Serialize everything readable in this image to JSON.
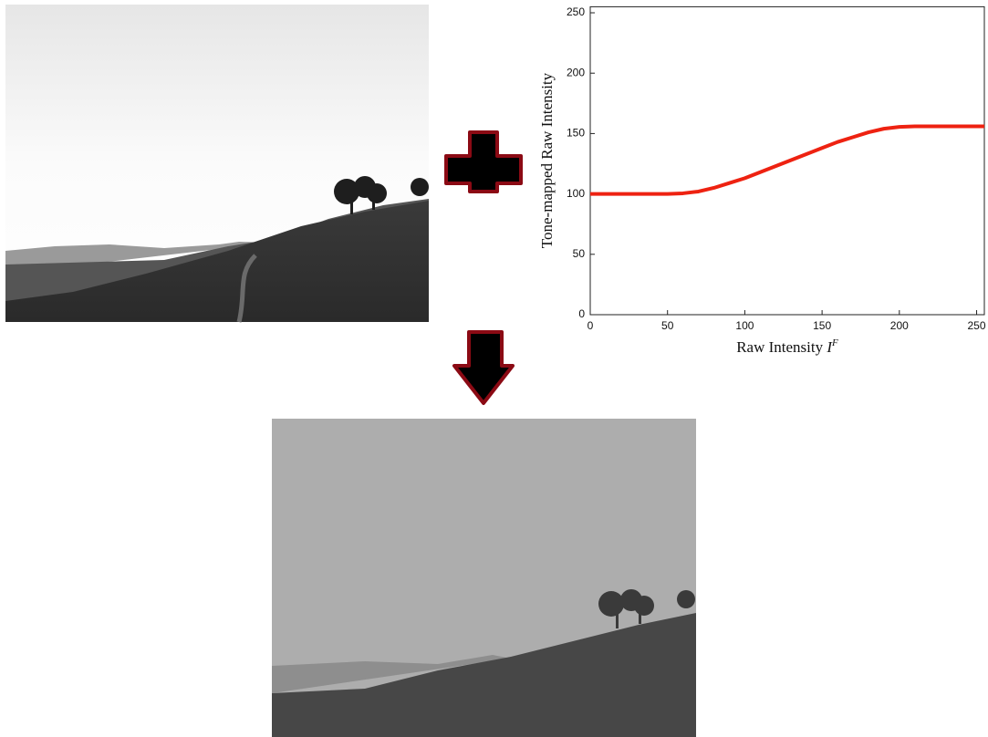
{
  "chart_data": {
    "type": "line",
    "x_label": "Raw Intensity",
    "x_label_symbol": "I",
    "x_label_superscript": "F",
    "y_label": "Tone-mapped Raw Intensity",
    "x": [
      0,
      25,
      50,
      60,
      70,
      80,
      90,
      100,
      110,
      120,
      130,
      140,
      150,
      160,
      170,
      180,
      190,
      200,
      210,
      220,
      230,
      240,
      255
    ],
    "series": [
      {
        "color": "#ee2211",
        "values": [
          100,
          100,
          100,
          100.5,
          102,
          105,
          109,
          113,
          118,
          123,
          128,
          133,
          138,
          143,
          147,
          151,
          154,
          155.5,
          156,
          156,
          156,
          156,
          156
        ]
      }
    ],
    "xlim": [
      0,
      255
    ],
    "ylim": [
      0,
      255
    ],
    "xticks": [
      0,
      50,
      100,
      150,
      200,
      250
    ],
    "yticks": [
      0,
      50,
      100,
      150,
      200,
      250
    ]
  }
}
